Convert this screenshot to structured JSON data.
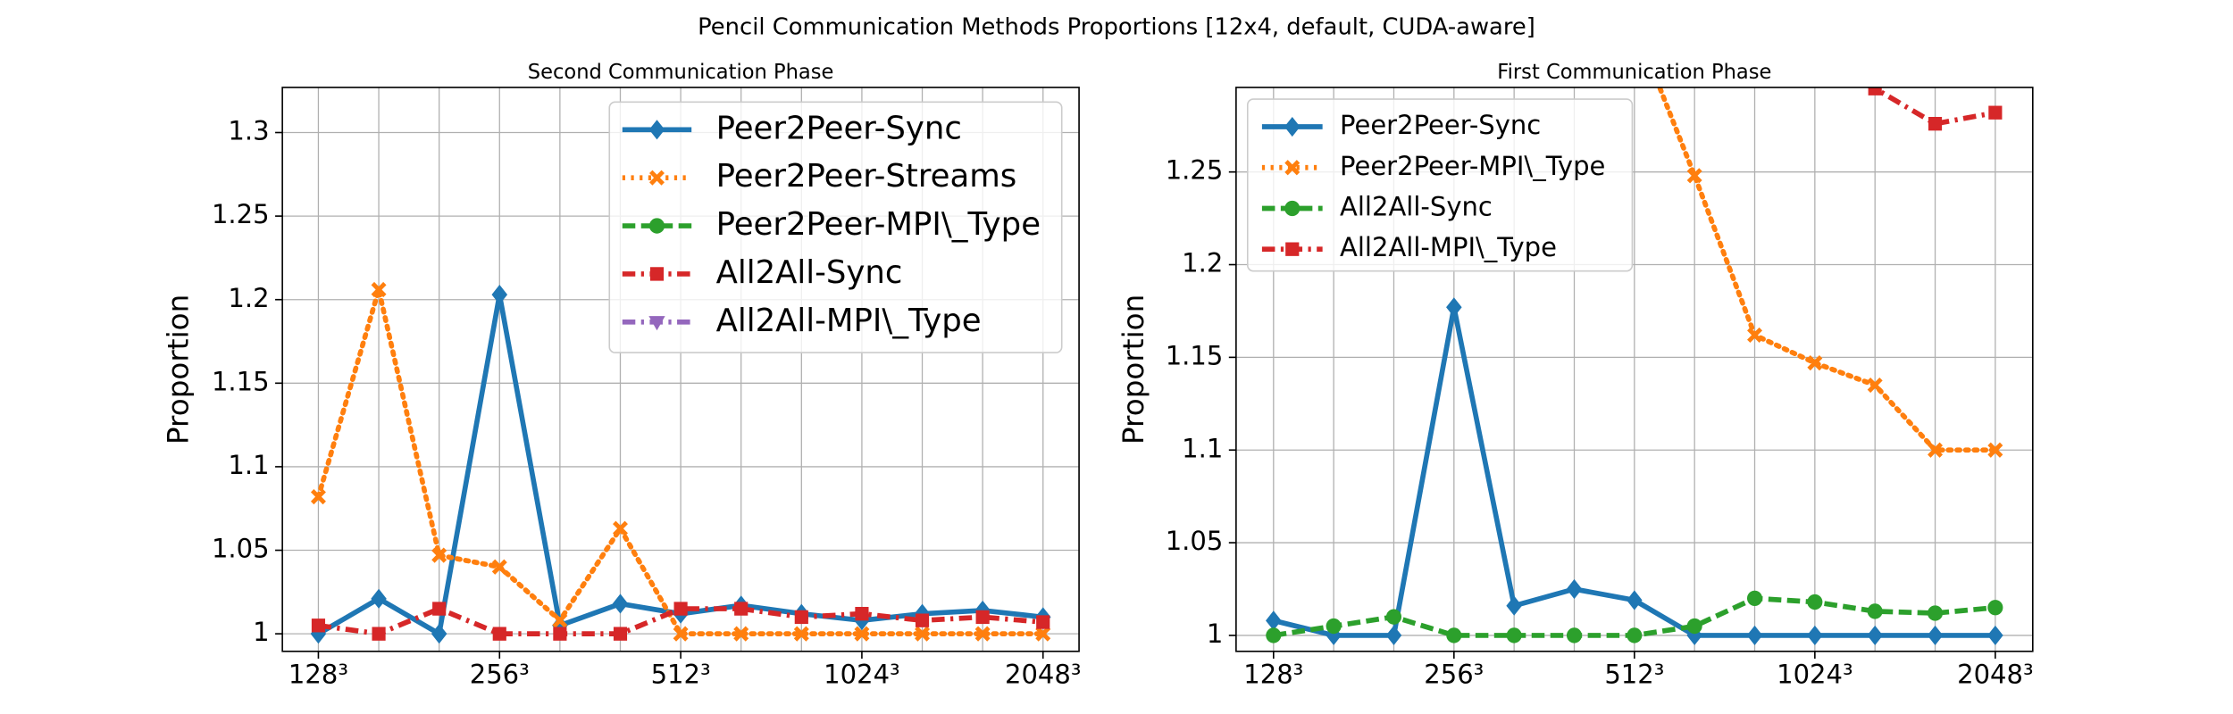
{
  "title": "Pencil Communication Methods Proportions [12x4, default, CUDA-aware]",
  "chart_data": [
    {
      "type": "line",
      "title": "Second Communication Phase",
      "ylabel": "Proportion",
      "categories": [
        "128³",
        null,
        null,
        "256³",
        null,
        null,
        "512³",
        null,
        null,
        "1024³",
        null,
        null,
        "2048³"
      ],
      "ylim": [
        0.9895,
        1.327
      ],
      "yticks": [
        1.0,
        1.05,
        1.1,
        1.15,
        1.2,
        1.25,
        1.3
      ],
      "grid": true,
      "legend": "upper right",
      "series": [
        {
          "name": "Peer2Peer-Sync",
          "color": "#1f77b4",
          "values": [
            1.0,
            1.021,
            1.0,
            1.203,
            1.005,
            1.018,
            1.012,
            1.017,
            1.012,
            1.008,
            1.012,
            1.014,
            1.01
          ]
        },
        {
          "name": "Peer2Peer-Streams",
          "color": "#ff7f0e",
          "values": [
            1.082,
            1.206,
            1.047,
            1.04,
            1.008,
            1.063,
            1.0,
            1.0,
            1.0,
            1.0,
            1.0,
            1.0,
            1.0
          ]
        },
        {
          "name": "Peer2Peer-MPI\\_Type",
          "color": "#2ca02c",
          "values": [
            null,
            null,
            null,
            null,
            null,
            null,
            null,
            null,
            null,
            null,
            null,
            null,
            null
          ]
        },
        {
          "name": "All2All-Sync",
          "color": "#d62728",
          "values": [
            1.005,
            1.0,
            1.015,
            1.0,
            1.0,
            1.0,
            1.015,
            1.015,
            1.01,
            1.012,
            1.008,
            1.01,
            1.007
          ]
        },
        {
          "name": "All2All-MPI\\_Type",
          "color": "#9467bd",
          "values": [
            null,
            null,
            null,
            null,
            null,
            null,
            null,
            null,
            null,
            null,
            null,
            null,
            null
          ]
        }
      ]
    },
    {
      "type": "line",
      "title": "First Communication Phase",
      "ylabel": "Proportion",
      "categories": [
        "128³",
        null,
        null,
        "256³",
        null,
        null,
        "512³",
        null,
        null,
        "1024³",
        null,
        null,
        "2048³"
      ],
      "ylim": [
        0.9914,
        1.2956
      ],
      "yticks": [
        1.0,
        1.05,
        1.1,
        1.15,
        1.2,
        1.25
      ],
      "grid": true,
      "legend": "upper left",
      "series": [
        {
          "name": "Peer2Peer-Sync",
          "color": "#1f77b4",
          "values": [
            1.008,
            1.0,
            1.0,
            1.177,
            1.016,
            1.025,
            1.019,
            1.0,
            1.0,
            1.0,
            1.0,
            1.0,
            1.0
          ]
        },
        {
          "name": "Peer2Peer-MPI\\_Type",
          "color": "#ff7f0e",
          "values": [
            null,
            null,
            null,
            null,
            null,
            null,
            1.33,
            1.248,
            1.162,
            1.147,
            1.135,
            1.1,
            1.1
          ]
        },
        {
          "name": "All2All-Sync",
          "color": "#2ca02c",
          "values": [
            1.0,
            1.005,
            1.01,
            1.0,
            1.0,
            1.0,
            1.0,
            1.005,
            1.02,
            1.018,
            1.013,
            1.012,
            1.015
          ]
        },
        {
          "name": "All2All-MPI\\_Type",
          "color": "#d62728",
          "values": [
            null,
            null,
            null,
            null,
            null,
            null,
            null,
            null,
            null,
            1.31,
            1.295,
            1.276,
            1.282
          ]
        }
      ]
    }
  ]
}
